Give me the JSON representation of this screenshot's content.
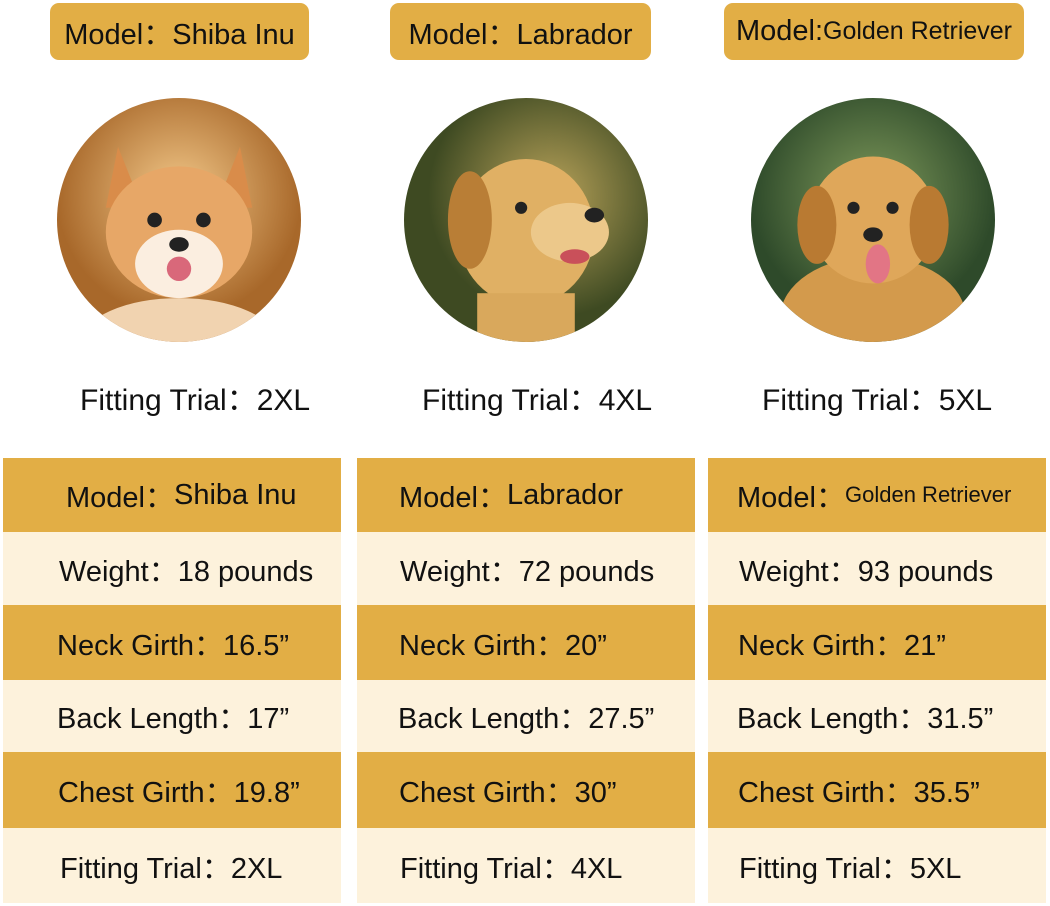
{
  "colors": {
    "gold": "#E2AE45",
    "cream": "#FDF2DC"
  },
  "models": [
    {
      "badge": "Model：Shiba Inu",
      "photo": "shiba-inu-photo",
      "fitting": "Fitting Trial：2XL",
      "table": {
        "model_label": "Model：",
        "model": "Shiba Inu",
        "weight": "Weight：18 pounds",
        "neck": "Neck Girth：16.5”",
        "back": "Back Length：17”",
        "chest": "Chest Girth：19.8”",
        "fitting": "Fitting Trial：2XL"
      }
    },
    {
      "badge": "Model：Labrador",
      "photo": "labrador-photo",
      "fitting": "Fitting Trial：4XL",
      "table": {
        "model_label": "Model：",
        "model": "Labrador",
        "weight": "Weight：72 pounds",
        "neck": "Neck Girth：20”",
        "back": "Back Length：27.5”",
        "chest": "Chest Girth：30”",
        "fitting": "Fitting Trial：4XL"
      }
    },
    {
      "badge_label": "Model:",
      "badge_value": "Golden Retriever",
      "photo": "golden-retriever-photo",
      "fitting": "Fitting Trial：5XL",
      "table": {
        "model_label": "Model：",
        "model": "Golden Retriever",
        "weight": "Weight：93 pounds",
        "neck": "Neck Girth：21”",
        "back": "Back Length：31.5”",
        "chest": "Chest Girth：35.5”",
        "fitting": "Fitting Trial：5XL"
      }
    }
  ]
}
